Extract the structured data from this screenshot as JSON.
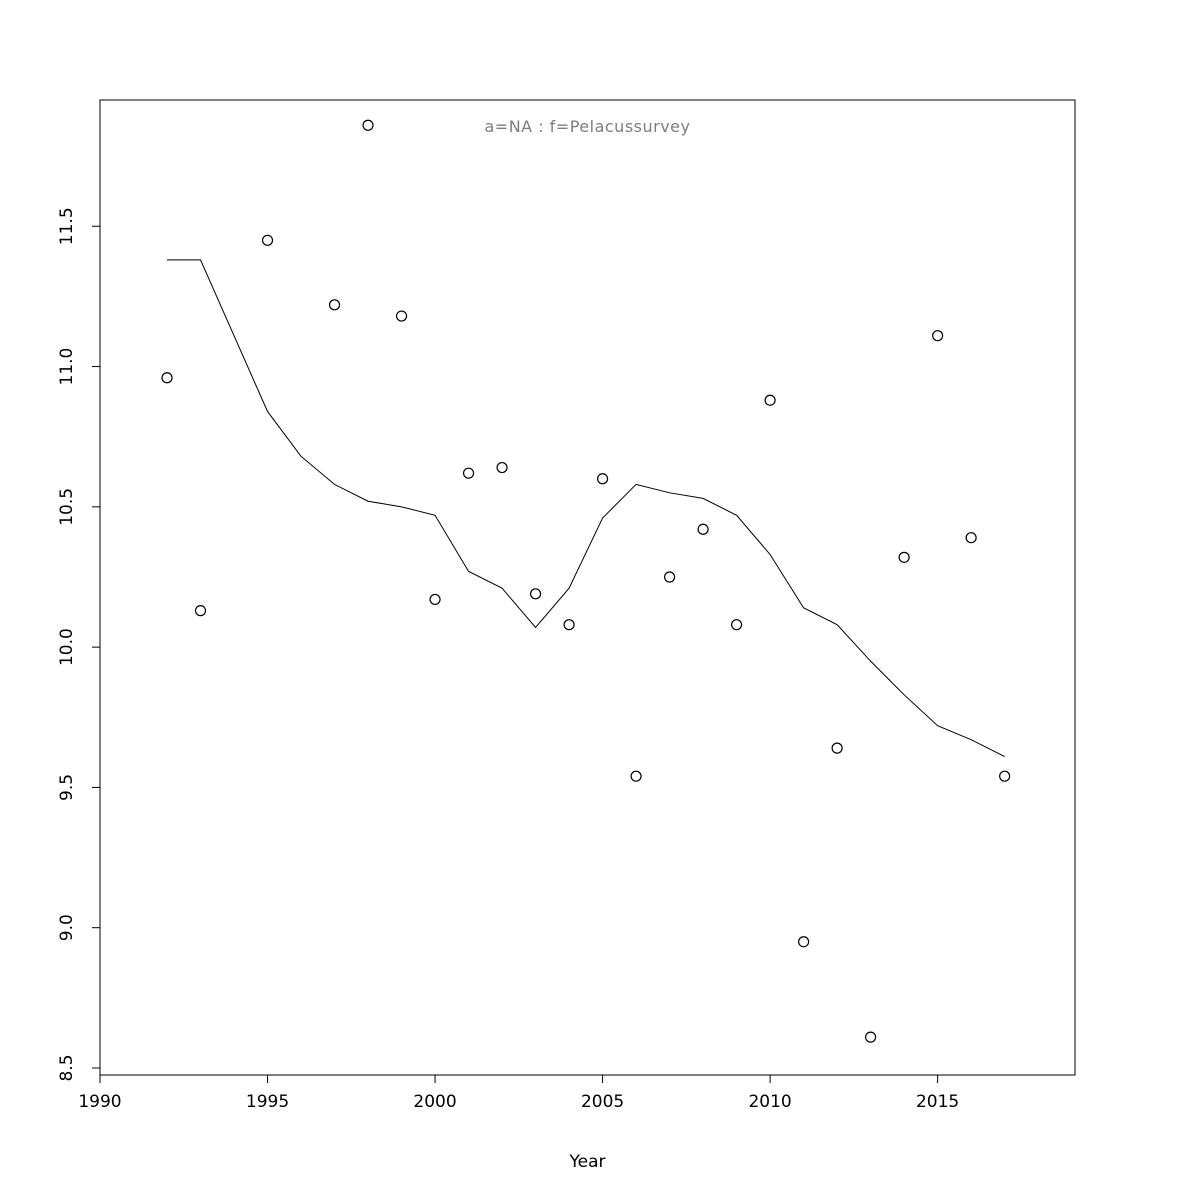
{
  "chart_data": {
    "type": "scatter",
    "title": "a=NA  :  f=Pelacussurvey",
    "xlabel": "Year",
    "ylabel": "",
    "xlim": [
      1990,
      2019.1
    ],
    "ylim": [
      8.475,
      11.95
    ],
    "x_ticks": [
      1990,
      1995,
      2000,
      2005,
      2010,
      2015
    ],
    "x_tick_labels": [
      "1990",
      "1995",
      "2000",
      "2005",
      "2010",
      "2015"
    ],
    "y_ticks": [
      8.5,
      9.0,
      9.5,
      10.0,
      10.5,
      11.0,
      11.5
    ],
    "y_tick_labels": [
      "8.5",
      "9.0",
      "9.5",
      "10.0",
      "10.5",
      "11.0",
      "11.5"
    ],
    "grid": false,
    "legend": "none",
    "colors": {
      "points": "#000000",
      "line": "#000000",
      "axis": "#000000",
      "title": "#7d7d7d",
      "background": "#ffffff"
    },
    "series": [
      {
        "name": "observations",
        "style": "open-circle",
        "x": [
          1992,
          1993,
          1995,
          1997,
          1998,
          1999,
          2000,
          2001,
          2002,
          2003,
          2004,
          2005,
          2006,
          2007,
          2008,
          2009,
          2010,
          2011,
          2012,
          2013,
          2014,
          2015,
          2016,
          2017
        ],
        "y": [
          10.96,
          10.13,
          11.45,
          11.22,
          11.86,
          11.18,
          10.17,
          10.62,
          10.64,
          10.19,
          10.08,
          10.6,
          9.54,
          10.25,
          10.42,
          10.08,
          10.88,
          8.95,
          9.64,
          8.61,
          10.32,
          11.11,
          10.39,
          9.54
        ]
      },
      {
        "name": "smoothed-trend",
        "style": "line",
        "x": [
          1992,
          1993,
          1994,
          1995,
          1996,
          1997,
          1998,
          1999,
          2000,
          2001,
          2002,
          2003,
          2004,
          2005,
          2006,
          2007,
          2008,
          2009,
          2010,
          2011,
          2012,
          2013,
          2014,
          2015,
          2016,
          2017
        ],
        "y": [
          11.38,
          11.38,
          11.11,
          10.84,
          10.68,
          10.58,
          10.52,
          10.5,
          10.47,
          10.27,
          10.21,
          10.07,
          10.21,
          10.46,
          10.58,
          10.55,
          10.53,
          10.47,
          10.33,
          10.14,
          10.08,
          9.95,
          9.83,
          9.72,
          9.67,
          9.61
        ]
      }
    ]
  }
}
